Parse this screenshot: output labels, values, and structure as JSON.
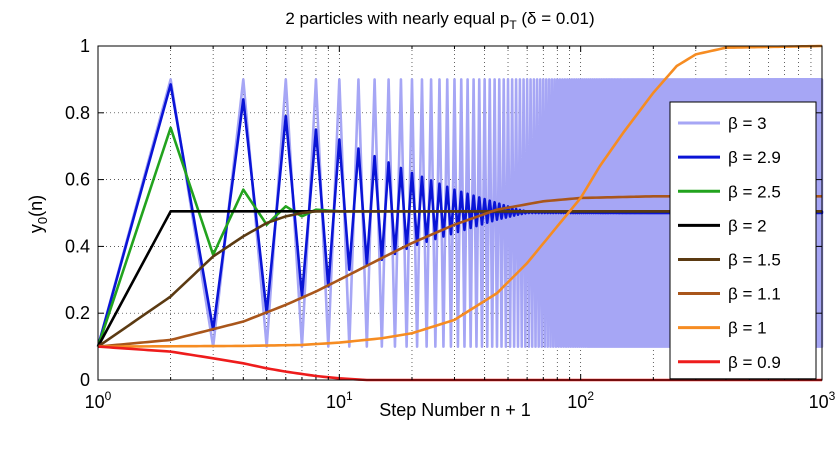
{
  "chart_data": {
    "type": "line",
    "title": {
      "prefix": "2 particles with nearly equal p",
      "subscript": "T",
      "suffix": " (δ = 0.01)"
    },
    "xlabel": "Step Number n + 1",
    "ylabel": {
      "main": "y",
      "subscript": "0",
      "suffix": "(n)"
    },
    "xscale": "log",
    "xlim": [
      1,
      1000
    ],
    "ylim": [
      0,
      1
    ],
    "grid": true,
    "legend_position": "right",
    "x_ticks": [
      {
        "value": 1,
        "base": "10",
        "exp": "0"
      },
      {
        "value": 10,
        "base": "10",
        "exp": "1"
      },
      {
        "value": 100,
        "base": "10",
        "exp": "2"
      },
      {
        "value": 1000,
        "base": "10",
        "exp": "3"
      }
    ],
    "y_ticks": [
      {
        "value": 0,
        "label": "0"
      },
      {
        "value": 0.2,
        "label": "0.2"
      },
      {
        "value": 0.4,
        "label": "0.4"
      },
      {
        "value": 0.6,
        "label": "0.6"
      },
      {
        "value": 0.8,
        "label": "0.8"
      },
      {
        "value": 1,
        "label": "1"
      }
    ],
    "series": [
      {
        "name": "β = 3",
        "color": "#a6a6f5",
        "oscillating": true,
        "low": [
          [
            1,
            0.1
          ],
          [
            3,
            0.1
          ],
          [
            1000,
            0.1
          ]
        ],
        "high": [
          [
            2,
            0.9
          ],
          [
            4,
            0.9
          ],
          [
            1000,
            0.9
          ]
        ]
      },
      {
        "name": "β = 2.9",
        "color": "#0a14d6",
        "oscillating": true,
        "low": [
          [
            1,
            0.1
          ],
          [
            3,
            0.15
          ],
          [
            5,
            0.2
          ],
          [
            7,
            0.25
          ],
          [
            9,
            0.28
          ],
          [
            11,
            0.33
          ],
          [
            15,
            0.36
          ],
          [
            20,
            0.4
          ],
          [
            30,
            0.44
          ],
          [
            45,
            0.48
          ],
          [
            55,
            0.495
          ],
          [
            60,
            0.5
          ],
          [
            1000,
            0.5
          ]
        ],
        "high": [
          [
            2,
            0.885
          ],
          [
            4,
            0.84
          ],
          [
            6,
            0.79
          ],
          [
            8,
            0.75
          ],
          [
            10,
            0.72
          ],
          [
            14,
            0.67
          ],
          [
            20,
            0.62
          ],
          [
            30,
            0.57
          ],
          [
            45,
            0.53
          ],
          [
            55,
            0.51
          ],
          [
            60,
            0.505
          ],
          [
            1000,
            0.505
          ]
        ]
      },
      {
        "name": "β = 2.5",
        "color": "#22a31e",
        "oscillating": false,
        "points": [
          [
            1,
            0.1
          ],
          [
            2,
            0.755
          ],
          [
            3,
            0.375
          ],
          [
            4,
            0.57
          ],
          [
            5,
            0.465
          ],
          [
            6,
            0.52
          ],
          [
            7,
            0.49
          ],
          [
            8,
            0.51
          ],
          [
            10,
            0.505
          ],
          [
            1000,
            0.505
          ]
        ]
      },
      {
        "name": "β = 2",
        "color": "#000000",
        "oscillating": false,
        "points": [
          [
            1,
            0.1
          ],
          [
            2,
            0.505
          ],
          [
            1000,
            0.505
          ]
        ]
      },
      {
        "name": "β = 1.5",
        "color": "#5b3a12",
        "oscillating": false,
        "points": [
          [
            1,
            0.1
          ],
          [
            2,
            0.25
          ],
          [
            3,
            0.37
          ],
          [
            4,
            0.43
          ],
          [
            5,
            0.47
          ],
          [
            6,
            0.49
          ],
          [
            7,
            0.5
          ],
          [
            8,
            0.505
          ],
          [
            1000,
            0.505
          ]
        ]
      },
      {
        "name": "β = 1.1",
        "color": "#a9561b",
        "oscillating": false,
        "points": [
          [
            1,
            0.1
          ],
          [
            2,
            0.12
          ],
          [
            4,
            0.175
          ],
          [
            6,
            0.225
          ],
          [
            8,
            0.265
          ],
          [
            10,
            0.3
          ],
          [
            15,
            0.365
          ],
          [
            20,
            0.41
          ],
          [
            30,
            0.465
          ],
          [
            45,
            0.51
          ],
          [
            70,
            0.535
          ],
          [
            100,
            0.545
          ],
          [
            200,
            0.55
          ],
          [
            1000,
            0.55
          ]
        ]
      },
      {
        "name": "β = 1",
        "color": "#f68c22",
        "oscillating": false,
        "points": [
          [
            1,
            0.1
          ],
          [
            4,
            0.102
          ],
          [
            7,
            0.105
          ],
          [
            10,
            0.112
          ],
          [
            15,
            0.125
          ],
          [
            20,
            0.14
          ],
          [
            30,
            0.18
          ],
          [
            45,
            0.26
          ],
          [
            60,
            0.35
          ],
          [
            80,
            0.46
          ],
          [
            100,
            0.545
          ],
          [
            120,
            0.64
          ],
          [
            150,
            0.74
          ],
          [
            200,
            0.86
          ],
          [
            250,
            0.94
          ],
          [
            300,
            0.975
          ],
          [
            400,
            0.995
          ],
          [
            1000,
            1.0
          ]
        ]
      },
      {
        "name": "β = 0.9",
        "color": "#ee1c1c",
        "oscillating": false,
        "points": [
          [
            1,
            0.1
          ],
          [
            2,
            0.085
          ],
          [
            3,
            0.065
          ],
          [
            4,
            0.05
          ],
          [
            5,
            0.035
          ],
          [
            6,
            0.025
          ],
          [
            8,
            0.012
          ],
          [
            10,
            0.005
          ],
          [
            13,
            0.0
          ],
          [
            1000,
            0.0
          ]
        ]
      }
    ]
  }
}
